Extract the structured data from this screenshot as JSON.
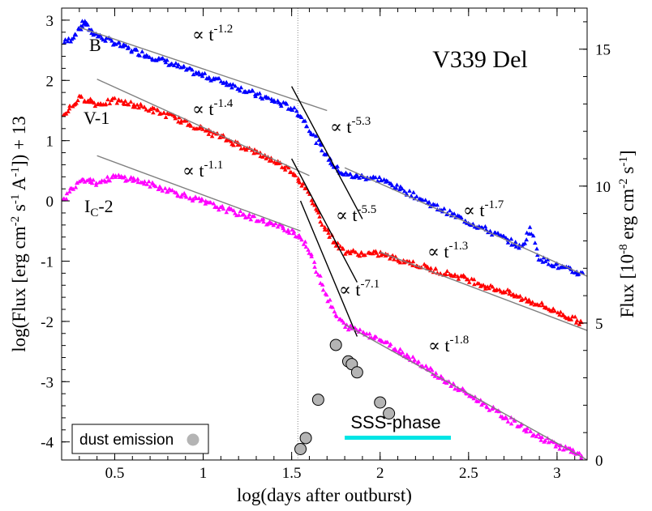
{
  "chart_data": {
    "type": "scatter",
    "title": "V339 Del",
    "xlabel": "log(days after outburst)",
    "ylabel": "log(Flux [erg cm-2 s-1 A-1]) + 13",
    "y2label": "Flux [10-8 erg cm-2 s-1]",
    "xlim": [
      0.2,
      3.17
    ],
    "ylim": [
      -4.3,
      3.2
    ],
    "y2lim": [
      0,
      16.5
    ],
    "x_ticks": [
      "0.5",
      "1",
      "1.5",
      "2",
      "2.5",
      "3"
    ],
    "y_ticks": [
      "3",
      "2",
      "1",
      "0",
      "-1",
      "-2",
      "-3",
      "-4"
    ],
    "y2_ticks": [
      "0",
      "5",
      "10",
      "15"
    ],
    "grid": false,
    "vertical_line_x": 1.535,
    "colors": {
      "B": "#0000ff",
      "V": "#ff0000",
      "Ic": "#ff00ff",
      "dust": "#b4b4b4",
      "fit": "#808080",
      "steep_fit": "#000000",
      "sss": "#00e5e5"
    },
    "series": [
      {
        "name": "B",
        "label": "B",
        "color": "#0000ff",
        "points": [
          [
            0.2,
            2.6
          ],
          [
            0.25,
            2.68
          ],
          [
            0.3,
            2.85
          ],
          [
            0.33,
            2.98
          ],
          [
            0.36,
            2.84
          ],
          [
            0.4,
            2.74
          ],
          [
            0.5,
            2.62
          ],
          [
            0.6,
            2.5
          ],
          [
            0.7,
            2.4
          ],
          [
            0.8,
            2.3
          ],
          [
            0.9,
            2.18
          ],
          [
            1.0,
            2.08
          ],
          [
            1.1,
            1.99
          ],
          [
            1.2,
            1.88
          ],
          [
            1.3,
            1.76
          ],
          [
            1.4,
            1.66
          ],
          [
            1.5,
            1.54
          ],
          [
            1.55,
            1.42
          ],
          [
            1.6,
            1.2
          ],
          [
            1.65,
            0.96
          ],
          [
            1.7,
            0.74
          ],
          [
            1.75,
            0.55
          ],
          [
            1.8,
            0.44
          ],
          [
            1.85,
            0.41
          ],
          [
            1.9,
            0.4
          ],
          [
            1.95,
            0.38
          ],
          [
            2.0,
            0.36
          ],
          [
            2.1,
            0.22
          ],
          [
            2.2,
            0.08
          ],
          [
            2.3,
            -0.08
          ],
          [
            2.4,
            -0.22
          ],
          [
            2.5,
            -0.35
          ],
          [
            2.6,
            -0.48
          ],
          [
            2.7,
            -0.62
          ],
          [
            2.8,
            -0.78
          ],
          [
            2.85,
            -0.45
          ],
          [
            2.9,
            -0.95
          ],
          [
            3.0,
            -1.08
          ],
          [
            3.1,
            -1.18
          ],
          [
            3.15,
            -1.22
          ]
        ]
      },
      {
        "name": "V",
        "label": "V-1",
        "color": "#ff0000",
        "points": [
          [
            0.2,
            1.4
          ],
          [
            0.25,
            1.55
          ],
          [
            0.3,
            1.7
          ],
          [
            0.35,
            1.68
          ],
          [
            0.4,
            1.6
          ],
          [
            0.5,
            1.66
          ],
          [
            0.6,
            1.6
          ],
          [
            0.7,
            1.52
          ],
          [
            0.8,
            1.42
          ],
          [
            0.9,
            1.3
          ],
          [
            1.0,
            1.18
          ],
          [
            1.1,
            1.06
          ],
          [
            1.2,
            0.93
          ],
          [
            1.3,
            0.8
          ],
          [
            1.4,
            0.66
          ],
          [
            1.5,
            0.5
          ],
          [
            1.55,
            0.33
          ],
          [
            1.6,
            0.08
          ],
          [
            1.65,
            -0.22
          ],
          [
            1.7,
            -0.5
          ],
          [
            1.75,
            -0.72
          ],
          [
            1.8,
            -0.84
          ],
          [
            1.9,
            -0.88
          ],
          [
            2.0,
            -0.88
          ],
          [
            2.1,
            -0.97
          ],
          [
            2.2,
            -1.05
          ],
          [
            2.3,
            -1.15
          ],
          [
            2.4,
            -1.22
          ],
          [
            2.5,
            -1.3
          ],
          [
            2.6,
            -1.42
          ],
          [
            2.7,
            -1.5
          ],
          [
            2.8,
            -1.62
          ],
          [
            2.9,
            -1.72
          ],
          [
            3.0,
            -1.85
          ],
          [
            3.1,
            -1.97
          ],
          [
            3.15,
            -2.05
          ]
        ]
      },
      {
        "name": "Ic",
        "label": "IC-2",
        "color": "#ff00ff",
        "points": [
          [
            0.2,
            -0.05
          ],
          [
            0.25,
            0.18
          ],
          [
            0.3,
            0.35
          ],
          [
            0.35,
            0.36
          ],
          [
            0.4,
            0.3
          ],
          [
            0.5,
            0.4
          ],
          [
            0.6,
            0.36
          ],
          [
            0.7,
            0.27
          ],
          [
            0.8,
            0.18
          ],
          [
            0.9,
            0.08
          ],
          [
            1.0,
            -0.02
          ],
          [
            1.1,
            -0.12
          ],
          [
            1.2,
            -0.21
          ],
          [
            1.3,
            -0.3
          ],
          [
            1.4,
            -0.4
          ],
          [
            1.5,
            -0.5
          ],
          [
            1.55,
            -0.6
          ],
          [
            1.6,
            -0.85
          ],
          [
            1.65,
            -1.2
          ],
          [
            1.7,
            -1.58
          ],
          [
            1.75,
            -1.9
          ],
          [
            1.8,
            -2.08
          ],
          [
            1.9,
            -2.17
          ],
          [
            2.0,
            -2.3
          ],
          [
            2.1,
            -2.48
          ],
          [
            2.2,
            -2.65
          ],
          [
            2.3,
            -2.85
          ],
          [
            2.4,
            -3.05
          ],
          [
            2.5,
            -3.22
          ],
          [
            2.6,
            -3.4
          ],
          [
            2.7,
            -3.58
          ],
          [
            2.8,
            -3.75
          ],
          [
            2.9,
            -3.93
          ],
          [
            3.0,
            -4.05
          ],
          [
            3.1,
            -4.18
          ],
          [
            3.15,
            -4.28
          ]
        ]
      }
    ],
    "dust": {
      "name": "dust emission",
      "flux_points": [
        [
          1.55,
          0.4
        ],
        [
          1.58,
          0.8
        ],
        [
          1.65,
          2.2
        ],
        [
          1.75,
          4.2
        ],
        [
          1.82,
          3.6
        ],
        [
          1.84,
          3.5
        ],
        [
          1.87,
          3.2
        ],
        [
          2.0,
          2.1
        ],
        [
          2.05,
          1.7
        ]
      ]
    },
    "fits": [
      {
        "label": "∝ t",
        "exponent": "-1.2",
        "x": [
          0.3,
          1.7
        ],
        "y": [
          2.88,
          1.5
        ]
      },
      {
        "label": "∝ t",
        "exponent": "-1.4",
        "x": [
          0.4,
          1.6
        ],
        "y": [
          2.02,
          0.42
        ]
      },
      {
        "label": "∝ t",
        "exponent": "-1.1",
        "x": [
          0.4,
          1.55
        ],
        "y": [
          0.75,
          -0.5
        ]
      },
      {
        "label": "∝ t",
        "exponent": "-5.3",
        "x": [
          1.5,
          1.9
        ],
        "y": [
          1.9,
          -0.3
        ]
      },
      {
        "label": "∝ t",
        "exponent": "-5.5",
        "x": [
          1.5,
          1.87
        ],
        "y": [
          0.7,
          -1.35
        ]
      },
      {
        "label": "∝ t",
        "exponent": "-7.1",
        "x": [
          1.55,
          1.87
        ],
        "y": [
          0.0,
          -2.25
        ]
      },
      {
        "label": "∝ t",
        "exponent": "-1.7",
        "x": [
          1.8,
          3.17
        ],
        "y": [
          0.55,
          -1.25
        ]
      },
      {
        "label": "∝ t",
        "exponent": "-1.3",
        "x": [
          2.0,
          3.17
        ],
        "y": [
          -0.85,
          -2.15
        ]
      },
      {
        "label": "∝ t",
        "exponent": "-1.8",
        "x": [
          1.8,
          3.17
        ],
        "y": [
          -2.05,
          -4.3
        ]
      }
    ],
    "sss_phase": {
      "label": "SSS-phase",
      "x": [
        1.8,
        2.4
      ],
      "y": -3.93
    },
    "legend": {
      "label": "dust emission",
      "position": "bottom-left"
    }
  }
}
